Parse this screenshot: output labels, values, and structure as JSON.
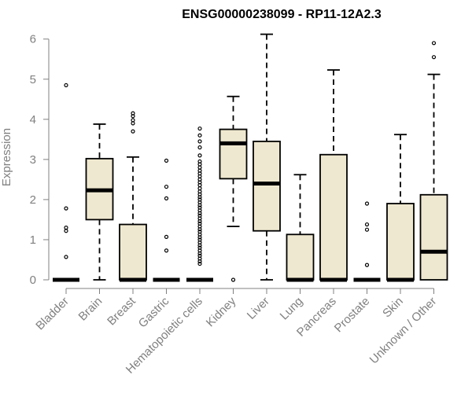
{
  "chart_data": {
    "type": "boxplot",
    "title": "ENSG00000238099 - RP11-12A2.3",
    "xlabel": "",
    "ylabel": "Expression",
    "ylim": [
      0,
      6.2
    ],
    "yticks": [
      0,
      1,
      2,
      3,
      4,
      5,
      6
    ],
    "box_fill": "#efe8d0",
    "box_stroke": "#000000",
    "axis_color": "#808080",
    "categories": [
      "Bladder",
      "Brain",
      "Breast",
      "Gastric",
      "Hematopoietic cells",
      "Kidney",
      "Liver",
      "Lung",
      "Pancreas",
      "Prostate",
      "Skin",
      "Unknown / Other"
    ],
    "boxes": [
      {
        "min": 0,
        "q1": 0,
        "median": 0,
        "q3": 0,
        "max": 0,
        "outliers": [
          4.85,
          1.78,
          1.3,
          1.22,
          0.57
        ]
      },
      {
        "min": 0,
        "q1": 1.5,
        "median": 2.23,
        "q3": 3.02,
        "max": 3.88,
        "outliers": []
      },
      {
        "min": 0,
        "q1": 0,
        "median": 0,
        "q3": 1.38,
        "max": 3.06,
        "outliers": [
          4.15,
          4.08,
          3.98,
          3.9,
          3.7
        ]
      },
      {
        "min": 0,
        "q1": 0,
        "median": 0,
        "q3": 0,
        "max": 0,
        "outliers": [
          2.97,
          2.32,
          2.03,
          1.07,
          0.73
        ]
      },
      {
        "min": 0,
        "q1": 0,
        "median": 0,
        "q3": 0,
        "max": 0,
        "outliers": [
          3.77,
          3.6,
          3.45,
          3.3,
          3.1,
          2.95,
          2.88,
          2.8,
          2.72,
          2.65,
          2.58,
          2.5,
          2.43,
          2.36,
          2.28,
          2.2,
          2.13,
          2.06,
          2.0,
          1.93,
          1.86,
          1.8,
          1.73,
          1.66,
          1.6,
          1.53,
          1.46,
          1.4,
          1.33,
          1.26,
          1.2,
          1.13,
          1.06,
          1.0,
          0.93,
          0.86,
          0.8,
          0.73,
          0.66,
          0.6,
          0.53,
          0.46,
          0.4
        ]
      },
      {
        "min": 1.33,
        "q1": 2.52,
        "median": 3.4,
        "q3": 3.75,
        "max": 4.57,
        "outliers": [
          0
        ]
      },
      {
        "min": 0,
        "q1": 1.22,
        "median": 2.4,
        "q3": 3.45,
        "max": 6.12,
        "outliers": []
      },
      {
        "min": 0,
        "q1": 0,
        "median": 0,
        "q3": 1.13,
        "max": 2.62,
        "outliers": []
      },
      {
        "min": 0,
        "q1": 0,
        "median": 0,
        "q3": 3.12,
        "max": 5.23,
        "outliers": []
      },
      {
        "min": 0,
        "q1": 0,
        "median": 0,
        "q3": 0,
        "max": 0,
        "outliers": [
          1.9,
          1.38,
          1.25,
          0.37
        ]
      },
      {
        "min": 0,
        "q1": 0,
        "median": 0,
        "q3": 1.9,
        "max": 3.62,
        "outliers": []
      },
      {
        "min": 0,
        "q1": 0,
        "median": 0.7,
        "q3": 2.12,
        "max": 5.12,
        "outliers": [
          5.9,
          5.55
        ]
      }
    ]
  }
}
